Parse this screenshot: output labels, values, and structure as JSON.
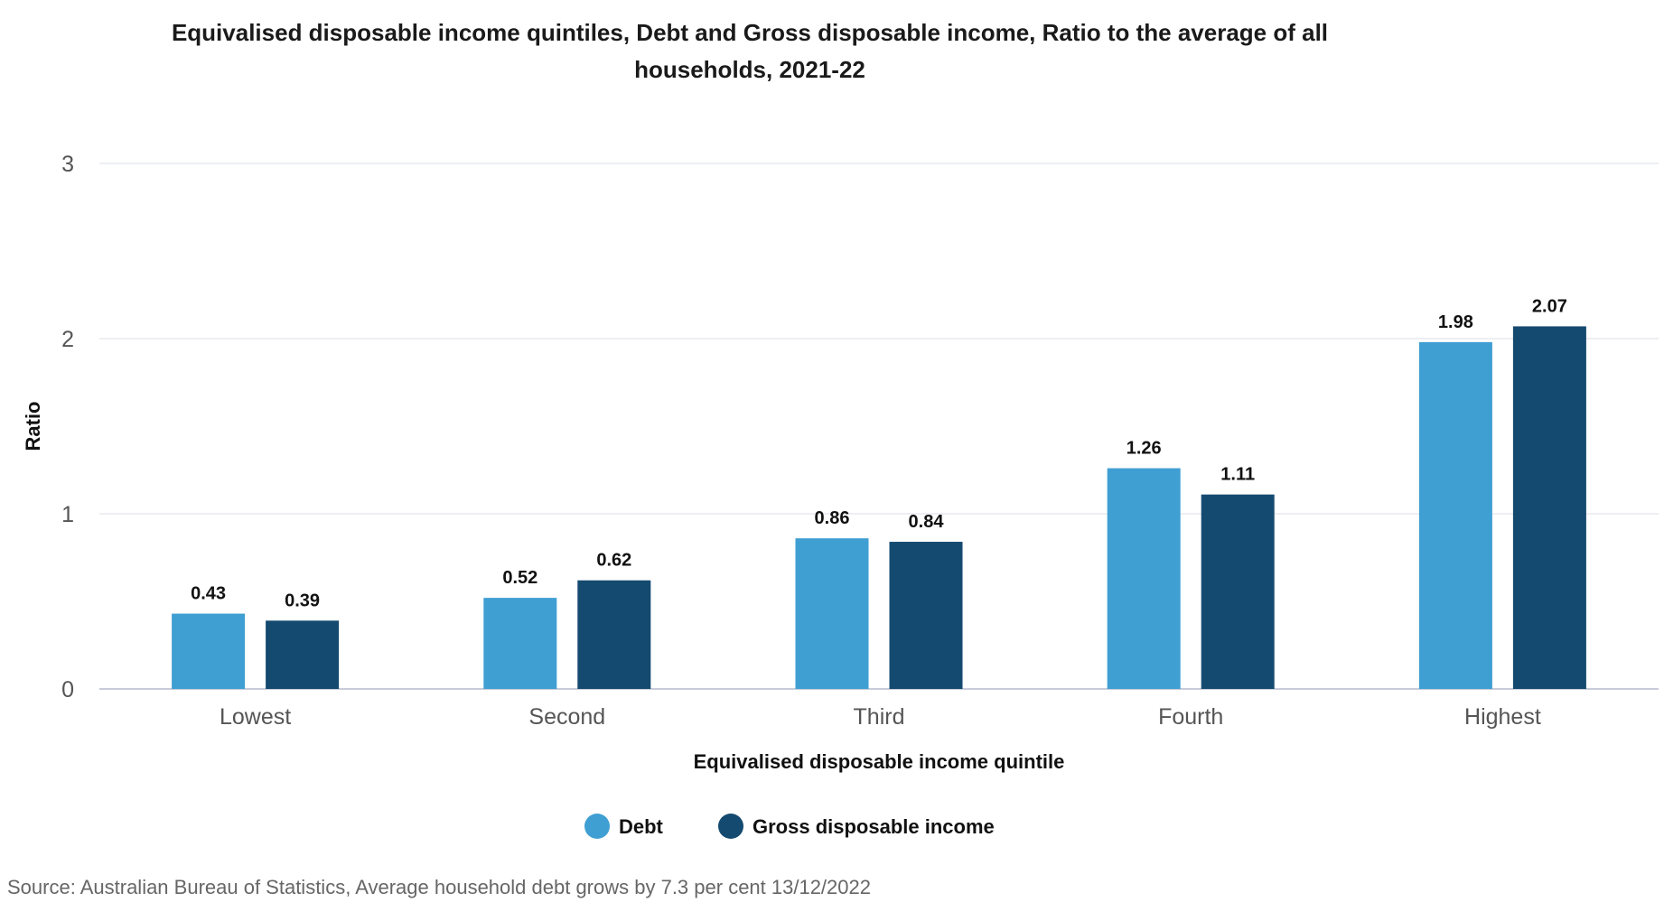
{
  "chart_data": {
    "type": "bar",
    "title": "Equivalised disposable income quintiles, Debt and Gross disposable income, Ratio to the average of all households, 2021-22",
    "xlabel": "Equivalised disposable income quintile",
    "ylabel": "Ratio",
    "ylim": [
      0,
      3
    ],
    "yticks": [
      "0",
      "1",
      "2",
      "3"
    ],
    "categories": [
      "Lowest",
      "Second",
      "Third",
      "Fourth",
      "Highest"
    ],
    "series": [
      {
        "name": "Debt",
        "color": "#3f9fd3",
        "values": [
          0.43,
          0.52,
          0.86,
          1.26,
          1.98
        ],
        "labels": [
          "0.43",
          "0.52",
          "0.86",
          "1.26",
          "1.98"
        ]
      },
      {
        "name": "Gross disposable income",
        "color": "#154a70",
        "values": [
          0.39,
          0.62,
          0.84,
          1.11,
          2.07
        ],
        "labels": [
          "0.39",
          "0.62",
          "0.84",
          "1.11",
          "2.07"
        ]
      }
    ],
    "grid": true,
    "legend": "bottom-center"
  },
  "source": "Source: Australian Bureau of Statistics, Average household debt grows by 7.3 per cent 13/12/2022"
}
